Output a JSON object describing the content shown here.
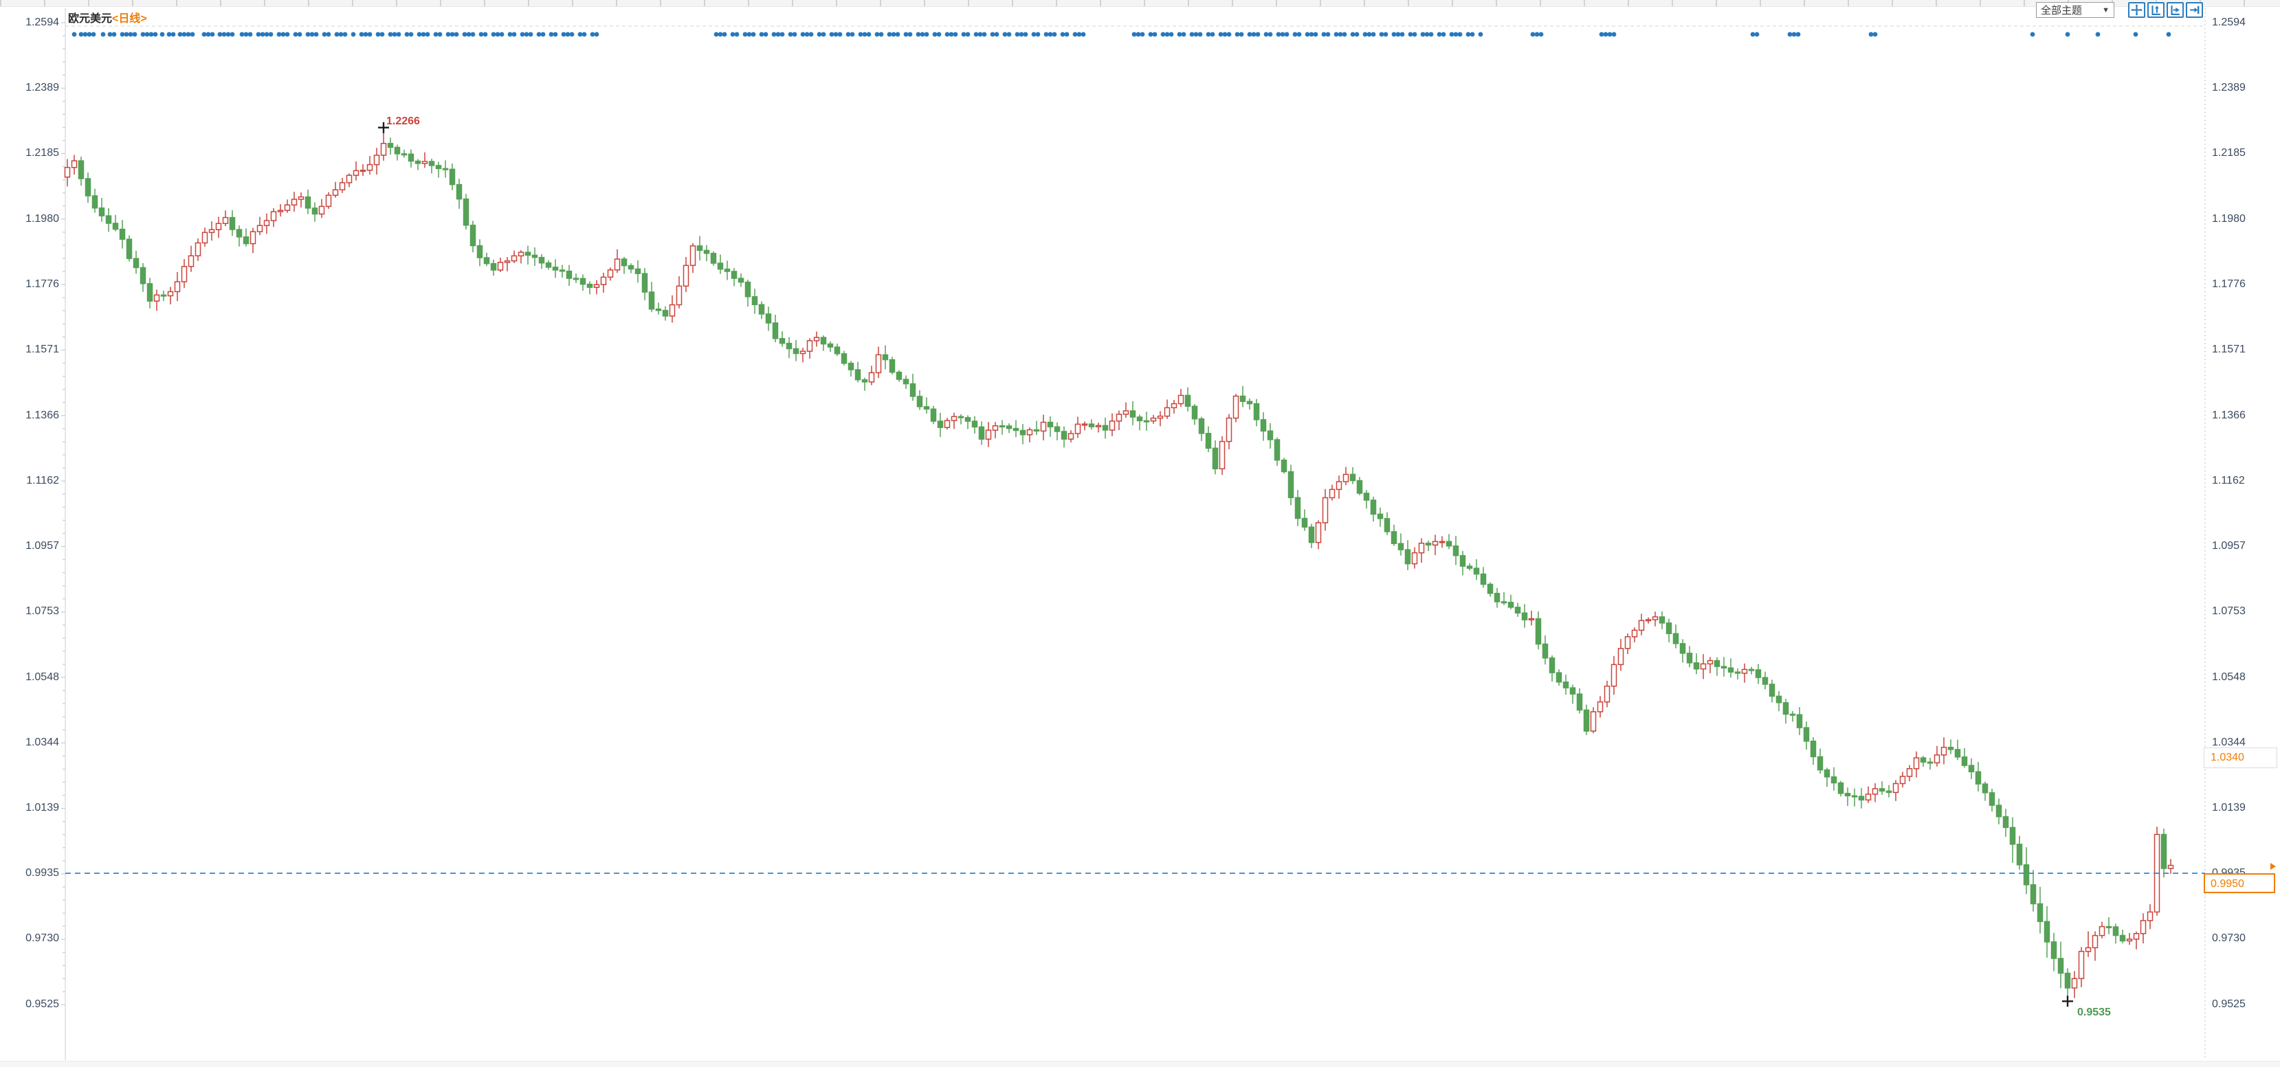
{
  "header": {
    "symbol": "欧元美元",
    "period": "<日线>"
  },
  "toolbar": {
    "dropdown_label": "全部主题",
    "dropdown_arrow": "▼",
    "buttons": [
      {
        "icon": "crosshair-move-icon"
      },
      {
        "icon": "auto-scale-y-icon"
      },
      {
        "icon": "auto-scale-x-icon"
      },
      {
        "icon": "jump-to-latest-icon"
      }
    ]
  },
  "annotations": {
    "high_label": "1.2266",
    "low_label": "0.9535",
    "alert_price_label": "1.0340",
    "current_price_label": "0.9950"
  },
  "chart_data": {
    "type": "candlestick",
    "title": "欧元美元 日线",
    "y_axis_ticks": [
      "1.2594",
      "1.2389",
      "1.2185",
      "1.1980",
      "1.1776",
      "1.1571",
      "1.1366",
      "1.1162",
      "1.0957",
      "1.0753",
      "1.0548",
      "1.0344",
      "1.0139",
      "0.9935",
      "0.9730",
      "0.9525"
    ],
    "y_range": [
      0.9525,
      1.2594
    ],
    "grid": "top-line-only",
    "visible_high": {
      "price": 1.2266,
      "candle_index": 46
    },
    "visible_low": {
      "price": 0.9535,
      "candle_index": 291
    },
    "dashed_reference_price": 0.9935,
    "orange_level_price": 1.034,
    "current_price": 0.995,
    "candle_count": 307,
    "close_anchors": [
      [
        0,
        1.214
      ],
      [
        1,
        1.2165
      ],
      [
        3,
        1.205
      ],
      [
        8,
        1.191
      ],
      [
        12,
        1.1725
      ],
      [
        15,
        1.175
      ],
      [
        20,
        1.194
      ],
      [
        23,
        1.1985
      ],
      [
        26,
        1.1905
      ],
      [
        30,
        1.2005
      ],
      [
        34,
        1.204
      ],
      [
        36,
        1.199
      ],
      [
        40,
        1.21
      ],
      [
        44,
        1.215
      ],
      [
        46,
        1.2225
      ],
      [
        50,
        1.216
      ],
      [
        55,
        1.214
      ],
      [
        57,
        1.205
      ],
      [
        59,
        1.189
      ],
      [
        62,
        1.183
      ],
      [
        66,
        1.188
      ],
      [
        70,
        1.184
      ],
      [
        74,
        1.179
      ],
      [
        77,
        1.177
      ],
      [
        80,
        1.186
      ],
      [
        83,
        1.181
      ],
      [
        85,
        1.17
      ],
      [
        87,
        1.167
      ],
      [
        89,
        1.177
      ],
      [
        91,
        1.189
      ],
      [
        94,
        1.185
      ],
      [
        97,
        1.18
      ],
      [
        100,
        1.172
      ],
      [
        103,
        1.161
      ],
      [
        106,
        1.155
      ],
      [
        109,
        1.162
      ],
      [
        112,
        1.156
      ],
      [
        114,
        1.15
      ],
      [
        116,
        1.146
      ],
      [
        118,
        1.155
      ],
      [
        121,
        1.149
      ],
      [
        124,
        1.14
      ],
      [
        127,
        1.133
      ],
      [
        130,
        1.137
      ],
      [
        133,
        1.13
      ],
      [
        136,
        1.134
      ],
      [
        139,
        1.13
      ],
      [
        142,
        1.134
      ],
      [
        145,
        1.129
      ],
      [
        148,
        1.135
      ],
      [
        151,
        1.132
      ],
      [
        154,
        1.138
      ],
      [
        157,
        1.134
      ],
      [
        160,
        1.139
      ],
      [
        162,
        1.143
      ],
      [
        165,
        1.131
      ],
      [
        167,
        1.121
      ],
      [
        168,
        1.128
      ],
      [
        170,
        1.142
      ],
      [
        172,
        1.14
      ],
      [
        175,
        1.128
      ],
      [
        177,
        1.118
      ],
      [
        179,
        1.104
      ],
      [
        181,
        1.098
      ],
      [
        183,
        1.11
      ],
      [
        186,
        1.119
      ],
      [
        189,
        1.11
      ],
      [
        192,
        1.1
      ],
      [
        195,
        1.091
      ],
      [
        197,
        1.0965
      ],
      [
        200,
        1.0975
      ],
      [
        203,
        1.09
      ],
      [
        206,
        1.084
      ],
      [
        208,
        1.079
      ],
      [
        210,
        1.076
      ],
      [
        213,
        1.072
      ],
      [
        215,
        1.06
      ],
      [
        217,
        1.053
      ],
      [
        219,
        1.05
      ],
      [
        221,
        1.038
      ],
      [
        222,
        1.044
      ],
      [
        224,
        1.052
      ],
      [
        226,
        1.064
      ],
      [
        229,
        1.072
      ],
      [
        231,
        1.074
      ],
      [
        233,
        1.069
      ],
      [
        235,
        1.062
      ],
      [
        237,
        1.057
      ],
      [
        239,
        1.06
      ],
      [
        241,
        1.058
      ],
      [
        243,
        1.0555
      ],
      [
        245,
        1.057
      ],
      [
        247,
        1.052
      ],
      [
        249,
        1.0465
      ],
      [
        251,
        1.042
      ],
      [
        253,
        1.034
      ],
      [
        255,
        1.0265
      ],
      [
        257,
        1.0215
      ],
      [
        259,
        1.0175
      ],
      [
        261,
        1.0155
      ],
      [
        263,
        1.021
      ],
      [
        265,
        1.0185
      ],
      [
        267,
        1.024
      ],
      [
        269,
        1.0295
      ],
      [
        271,
        1.028
      ],
      [
        273,
        1.033
      ],
      [
        275,
        1.03
      ],
      [
        277,
        1.0255
      ],
      [
        279,
        1.019
      ],
      [
        281,
        1.0115
      ],
      [
        283,
        1.0025
      ],
      [
        285,
        0.9905
      ],
      [
        287,
        0.978
      ],
      [
        289,
        0.966
      ],
      [
        291,
        0.9575
      ],
      [
        292,
        0.961
      ],
      [
        293,
        0.968
      ],
      [
        295,
        0.9745
      ],
      [
        297,
        0.9775
      ],
      [
        299,
        0.9715
      ],
      [
        301,
        0.9745
      ],
      [
        303,
        0.982
      ],
      [
        304,
        1.006
      ],
      [
        305,
        0.9945
      ],
      [
        306,
        0.995
      ]
    ],
    "event_marker_x": [
      108,
      118,
      124,
      130,
      136,
      150,
      160,
      166,
      178,
      184,
      190,
      196,
      208,
      214,
      220,
      226,
      236,
      246,
      252,
      262,
      268,
      274,
      280,
      297,
      303,
      309,
      320,
      326,
      332,
      338,
      352,
      358,
      364,
      376,
      382,
      388,
      394,
      406,
      412,
      418,
      430,
      436,
      448,
      454,
      460,
      472,
      478,
      490,
      496,
      502,
      514,
      526,
      532,
      538,
      550,
      556,
      568,
      574,
      580,
      592,
      598,
      610,
      616,
      622,
      634,
      640,
      652,
      658,
      664,
      676,
      682,
      688,
      700,
      706,
      718,
      724,
      730,
      742,
      748,
      760,
      766,
      772,
      784,
      790,
      802,
      808,
      820,
      826,
      832,
      844,
      850,
      862,
      868,
      1042,
      1048,
      1054,
      1066,
      1072,
      1084,
      1090,
      1096,
      1108,
      1114,
      1126,
      1132,
      1138,
      1150,
      1156,
      1168,
      1174,
      1180,
      1192,
      1198,
      1210,
      1216,
      1222,
      1234,
      1240,
      1252,
      1258,
      1264,
      1276,
      1282,
      1294,
      1300,
      1306,
      1318,
      1324,
      1336,
      1342,
      1348,
      1360,
      1366,
      1378,
      1384,
      1390,
      1402,
      1408,
      1420,
      1426,
      1432,
      1444,
      1450,
      1462,
      1468,
      1480,
      1486,
      1492,
      1504,
      1510,
      1522,
      1528,
      1534,
      1546,
      1552,
      1564,
      1570,
      1576,
      1650,
      1656,
      1662,
      1674,
      1680,
      1692,
      1698,
      1704,
      1716,
      1722,
      1734,
      1740,
      1746,
      1758,
      1764,
      1776,
      1782,
      1788,
      1800,
      1806,
      1818,
      1824,
      1830,
      1842,
      1848,
      1860,
      1866,
      1872,
      1884,
      1890,
      1902,
      1908,
      1914,
      1926,
      1932,
      1944,
      1950,
      1956,
      1968,
      1974,
      1986,
      1992,
      1998,
      2010,
      2016,
      2028,
      2034,
      2040,
      2052,
      2058,
      2070,
      2076,
      2082,
      2094,
      2100,
      2112,
      2118,
      2124,
      2136,
      2142,
      2154,
      2230,
      2236,
      2242,
      2330,
      2336,
      2342,
      2348,
      2550,
      2556,
      2604,
      2610,
      2616,
      2722,
      2728,
      2957,
      3008,
      3052,
      3107,
      3155
    ],
    "colors": {
      "up": "#c9443b",
      "down": "#55a156",
      "event_dot": "#2878be",
      "reference_line": "#2f86d6",
      "accent_orange": "#f07d00",
      "axis_text": "#3b4a5e"
    }
  }
}
